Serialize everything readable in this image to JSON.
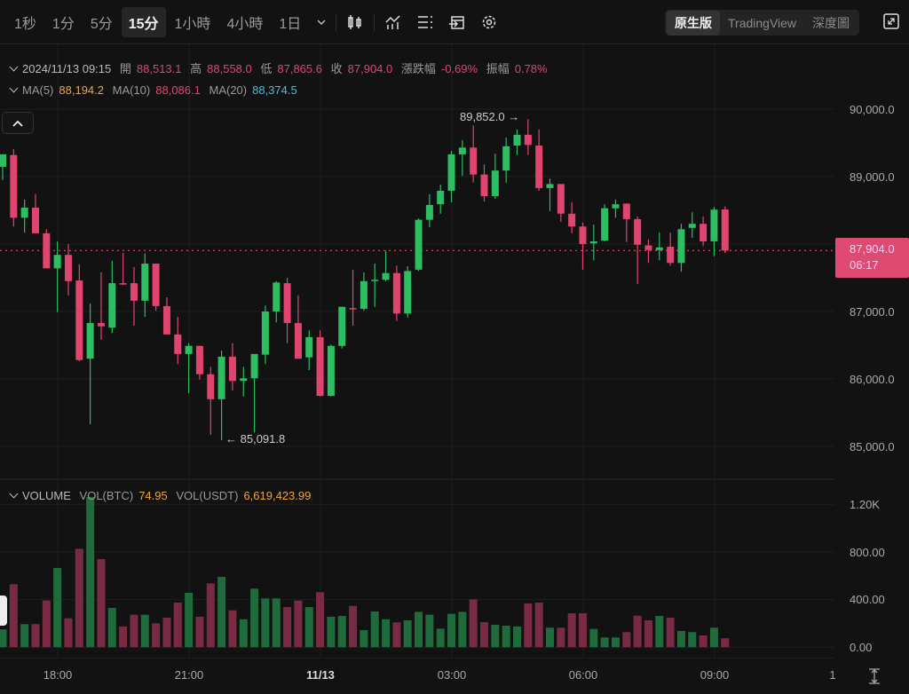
{
  "toolbar": {
    "timeframes": [
      "1秒",
      "1分",
      "5分",
      "15分",
      "1小時",
      "4小時",
      "1日"
    ],
    "active_timeframe": "15分",
    "views": [
      "原生版",
      "TradingView",
      "深度圖"
    ],
    "active_view": "原生版",
    "icons": [
      "chevron-down-icon",
      "candle-type-icon",
      "indicator-icon",
      "list-icon",
      "calendar-jump-icon",
      "gear-icon",
      "fullscreen-icon"
    ]
  },
  "info": {
    "datetime": "2024/11/13 09:15",
    "open_label": "開",
    "open": "88,513.1",
    "high_label": "高",
    "high": "88,558.0",
    "low_label": "低",
    "low": "87,865.6",
    "close_label": "收",
    "close": "87,904.0",
    "change_label": "漲跌幅",
    "change": "-0.69%",
    "amp_label": "振幅",
    "amp": "0.78%"
  },
  "ma": {
    "ma5_label": "MA(5)",
    "ma5": "88,194.2",
    "ma10_label": "MA(10)",
    "ma10": "88,086.1",
    "ma20_label": "MA(20)",
    "ma20": "88,374.5"
  },
  "volume": {
    "title": "VOLUME",
    "btc_label": "VOL(BTC)",
    "btc": "74.95",
    "usdt_label": "VOL(USDT)",
    "usdt": "6,619,423.99"
  },
  "price_axis": [
    "90,000.0",
    "89,000.0",
    "88,000.0",
    "87,000.0",
    "86,000.0",
    "85,000.0"
  ],
  "volume_axis": [
    "1.20K",
    "800.00",
    "400.00",
    "0.00"
  ],
  "time_axis": [
    "18:00",
    "21:00",
    "11/13",
    "03:00",
    "06:00",
    "09:00",
    "1"
  ],
  "last_price": {
    "price": "87,904.0",
    "countdown": "06:17"
  },
  "annotations": {
    "high": "89,852.0",
    "low": "85,091.8"
  },
  "colors": {
    "up": "#2dbd62",
    "down": "#e0456f",
    "vol_up": "#1f6b3b",
    "vol_down": "#7a2b44",
    "bg": "#121212"
  },
  "chart_data": {
    "type": "candlestick",
    "interval": "15m",
    "price_range": [
      85000,
      90000
    ],
    "last_price": 87904.0,
    "candles_ohlc": [
      [
        89145,
        89330,
        88950,
        89330
      ],
      [
        89320,
        89410,
        88260,
        88390
      ],
      [
        88390,
        88660,
        88170,
        88540
      ],
      [
        88540,
        88740,
        88160,
        88160
      ],
      [
        88160,
        88220,
        87640,
        87640
      ],
      [
        87640,
        88040,
        86990,
        87840
      ],
      [
        87840,
        88000,
        87240,
        87450
      ],
      [
        87460,
        87700,
        86260,
        86280
      ],
      [
        86300,
        87120,
        85330,
        86830
      ],
      [
        86830,
        87580,
        86580,
        86780
      ],
      [
        86760,
        87750,
        86680,
        87420
      ],
      [
        87420,
        87870,
        87390,
        87400
      ],
      [
        87420,
        87660,
        86790,
        87160
      ],
      [
        87160,
        87860,
        86920,
        87710
      ],
      [
        87710,
        87710,
        87010,
        87080
      ],
      [
        87080,
        87210,
        86660,
        86660
      ],
      [
        86660,
        86920,
        86220,
        86370
      ],
      [
        86370,
        86530,
        85790,
        86490
      ],
      [
        86490,
        86490,
        85990,
        86070
      ],
      [
        86070,
        86180,
        85170,
        85700
      ],
      [
        85700,
        86420,
        85091.8,
        86330
      ],
      [
        86330,
        86530,
        85830,
        85970
      ],
      [
        85970,
        86180,
        85740,
        86010
      ],
      [
        86010,
        86370,
        85210,
        86370
      ],
      [
        86360,
        87090,
        86220,
        87000
      ],
      [
        87000,
        87450,
        86840,
        87430
      ],
      [
        87420,
        87500,
        86530,
        86830
      ],
      [
        86830,
        87240,
        86300,
        86300
      ],
      [
        86320,
        86720,
        86130,
        86620
      ],
      [
        86620,
        86720,
        85740,
        85750
      ],
      [
        85750,
        86510,
        85740,
        86490
      ],
      [
        86490,
        87070,
        86450,
        87070
      ],
      [
        87050,
        87620,
        86790,
        87040
      ],
      [
        87040,
        87580,
        87010,
        87450
      ],
      [
        87450,
        87710,
        87070,
        87470
      ],
      [
        87470,
        87900,
        87450,
        87570
      ],
      [
        87570,
        87680,
        86860,
        86970
      ],
      [
        86970,
        87670,
        86910,
        87600
      ],
      [
        87620,
        88380,
        87600,
        88360
      ],
      [
        88360,
        88740,
        88250,
        88580
      ],
      [
        88590,
        88880,
        88450,
        88790
      ],
      [
        88790,
        89380,
        88620,
        89330
      ],
      [
        89330,
        89540,
        89010,
        89430
      ],
      [
        89430,
        89760,
        88910,
        89030
      ],
      [
        89030,
        89180,
        88630,
        88710
      ],
      [
        88710,
        89340,
        88670,
        89090
      ],
      [
        89090,
        89580,
        88910,
        89450
      ],
      [
        89460,
        89700,
        89320,
        89620
      ],
      [
        89620,
        89852,
        89320,
        89470
      ],
      [
        89460,
        89700,
        88790,
        88830
      ],
      [
        88830,
        88970,
        88490,
        88890
      ],
      [
        88890,
        88890,
        88330,
        88450
      ],
      [
        88450,
        88620,
        88160,
        88260
      ],
      [
        88260,
        88320,
        87620,
        88000
      ],
      [
        88010,
        88290,
        87760,
        88040
      ],
      [
        88050,
        88590,
        88040,
        88530
      ],
      [
        88530,
        88660,
        88390,
        88590
      ],
      [
        88600,
        88600,
        88030,
        88370
      ],
      [
        88370,
        88410,
        87410,
        87990
      ],
      [
        87980,
        88070,
        87720,
        87910
      ],
      [
        87910,
        88170,
        87760,
        87950
      ],
      [
        87960,
        88170,
        87680,
        87720
      ],
      [
        87720,
        88300,
        87590,
        88220
      ],
      [
        88240,
        88470,
        88090,
        88300
      ],
      [
        88300,
        88410,
        87970,
        88040
      ],
      [
        88040,
        88550,
        87820,
        88510
      ],
      [
        88513.1,
        88558.0,
        87865.6,
        87904.0
      ]
    ],
    "volumes": [
      150,
      529,
      194,
      194,
      392,
      665,
      243,
      827,
      1262,
      740,
      330,
      174,
      273,
      273,
      201,
      248,
      375,
      457,
      256,
      536,
      591,
      310,
      235,
      492,
      410,
      410,
      337,
      392,
      337,
      462,
      256,
      263,
      347,
      144,
      300,
      235,
      209,
      226,
      297,
      273,
      156,
      280,
      297,
      402,
      211,
      189,
      181,
      174,
      367,
      375,
      164,
      164,
      285,
      285,
      154,
      82,
      82,
      127,
      265,
      226,
      263,
      248,
      136,
      127,
      99,
      164,
      74.95
    ],
    "volume_range": [
      0,
      1200
    ]
  }
}
